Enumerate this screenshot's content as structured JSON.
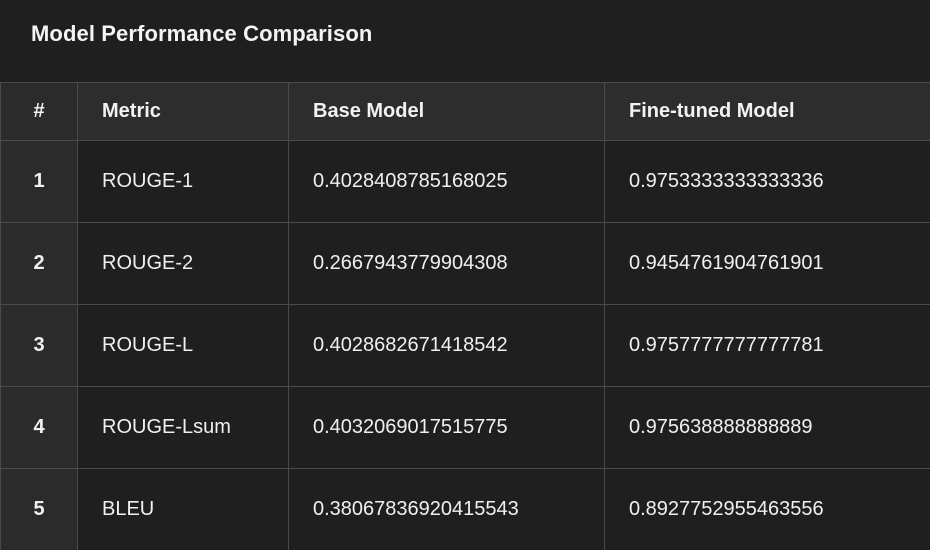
{
  "title": "Model Performance Comparison",
  "columns": {
    "index": "#",
    "metric": "Metric",
    "base": "Base Model",
    "finetuned": "Fine-tuned Model"
  },
  "rows": [
    {
      "index": "1",
      "metric": "ROUGE-1",
      "base": "0.4028408785168025",
      "finetuned": "0.9753333333333336"
    },
    {
      "index": "2",
      "metric": "ROUGE-2",
      "base": "0.2667943779904308",
      "finetuned": "0.9454761904761901"
    },
    {
      "index": "3",
      "metric": "ROUGE-L",
      "base": "0.4028682671418542",
      "finetuned": "0.9757777777777781"
    },
    {
      "index": "4",
      "metric": "ROUGE-Lsum",
      "base": "0.4032069017515775",
      "finetuned": "0.975638888888889"
    },
    {
      "index": "5",
      "metric": "BLEU",
      "base": "0.38067836920415543",
      "finetuned": "0.8927752955463556"
    }
  ],
  "colors": {
    "background": "#1e1e1e",
    "header_background": "#2d2d2d",
    "border": "#4a4a4a",
    "text": "#f2f2f2"
  }
}
